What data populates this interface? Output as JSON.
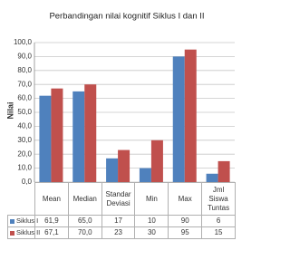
{
  "chart_data": {
    "type": "bar",
    "title": "Perbandingan nilai kognitif Siklus I dan II",
    "y_label": "Nilai",
    "categories": [
      "Mean",
      "Median",
      "Standar Deviasi",
      "Min",
      "Max",
      "Jml Siswa Tuntas"
    ],
    "series": [
      {
        "name": "Siklus I",
        "color": "#4f81bd",
        "values": [
          61.9,
          65.0,
          17,
          10,
          90,
          6
        ],
        "value_labels": [
          "61,9",
          "65,0",
          "17",
          "10",
          "90",
          "6"
        ]
      },
      {
        "name": "Siklus II",
        "color": "#c0504d",
        "values": [
          67.1,
          70.0,
          23,
          30,
          95,
          15
        ],
        "value_labels": [
          "67,1",
          "70,0",
          "23",
          "30",
          "95",
          "15"
        ]
      }
    ],
    "ylim": [
      0,
      100
    ],
    "yticks": [
      {
        "value": 0,
        "label": "0,0"
      },
      {
        "value": 10,
        "label": "10,0"
      },
      {
        "value": 20,
        "label": "20,0"
      },
      {
        "value": 30,
        "label": "30,0"
      },
      {
        "value": 40,
        "label": "40,0"
      },
      {
        "value": 50,
        "label": "50,0"
      },
      {
        "value": 60,
        "label": "60,0"
      },
      {
        "value": 70,
        "label": "70,0"
      },
      {
        "value": 80,
        "label": "80,0"
      },
      {
        "value": 90,
        "label": "90,0"
      },
      {
        "value": 100,
        "label": "100,0"
      }
    ],
    "grid": true
  }
}
